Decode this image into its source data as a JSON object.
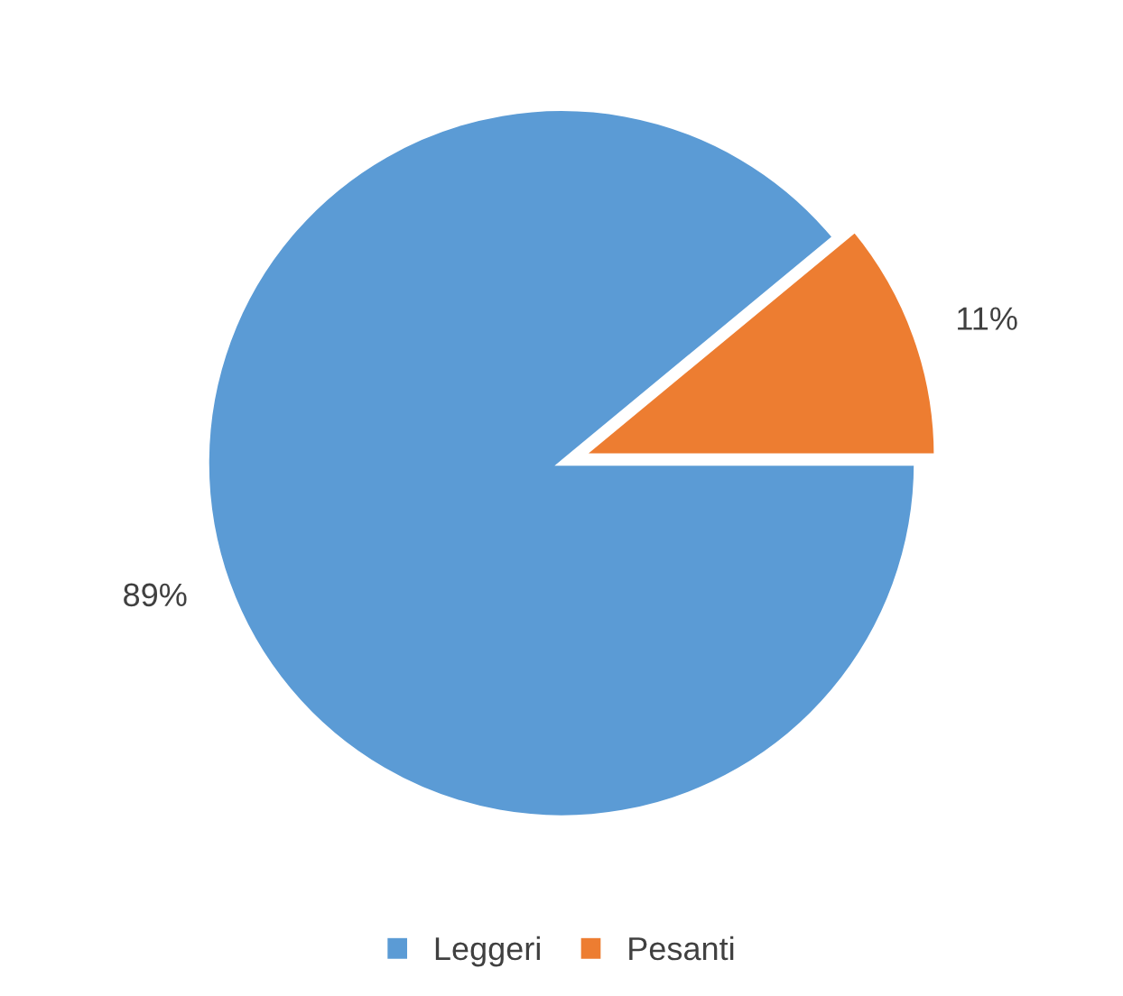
{
  "chart_data": {
    "type": "pie",
    "categories": [
      "Leggeri",
      "Pesanti"
    ],
    "values": [
      89,
      11
    ],
    "colors": [
      "#5b9bd5",
      "#ed7d31"
    ],
    "value_labels": [
      "89%",
      "11%"
    ],
    "legend": "bottom"
  }
}
